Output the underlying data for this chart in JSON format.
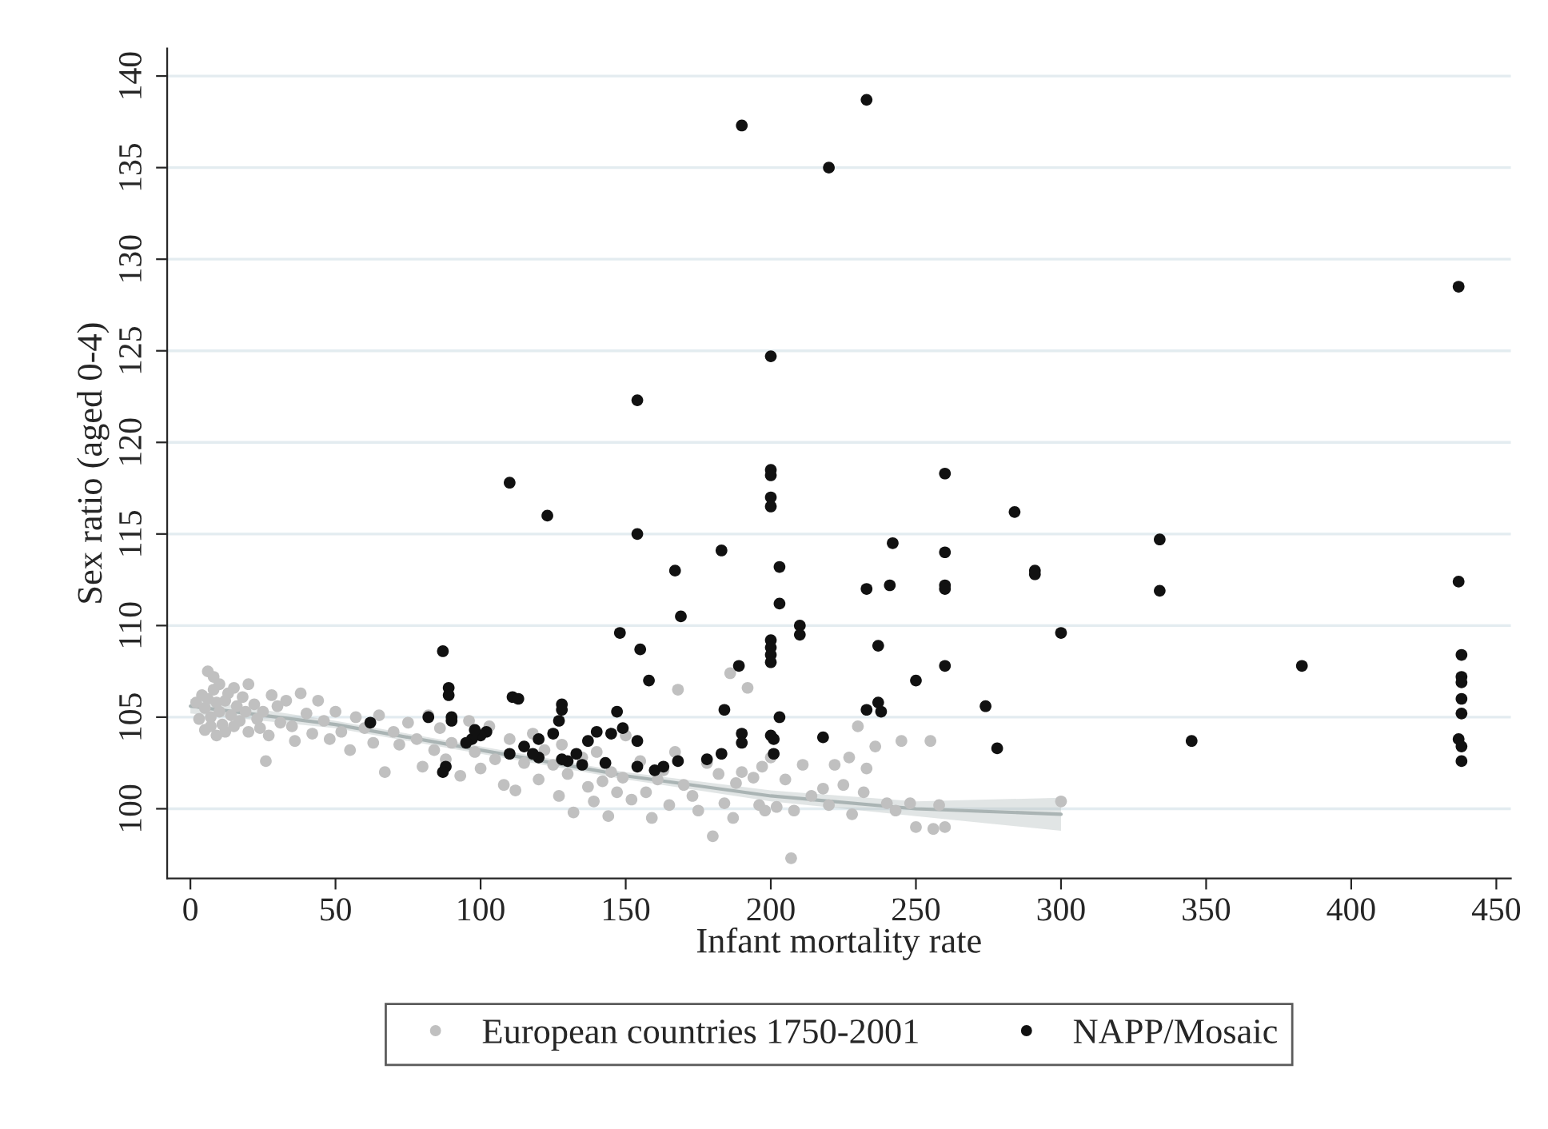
{
  "chart_data": {
    "type": "scatter",
    "xlabel": "Infant mortality rate",
    "ylabel": "Sex ratio (aged 0-4)",
    "xlim": [
      -8,
      455
    ],
    "ylim": [
      96.2,
      141.5
    ],
    "xticks": [
      0,
      50,
      100,
      150,
      200,
      250,
      300,
      350,
      400,
      450
    ],
    "yticks": [
      100,
      105,
      110,
      115,
      120,
      125,
      130,
      135,
      140
    ],
    "grid": "y",
    "legend": "bottom",
    "series": [
      {
        "name": "European countries 1750-2001",
        "marker": "circle",
        "color": "#c0c0c0",
        "x": [
          2,
          3,
          4,
          5,
          5,
          6,
          6,
          7,
          7,
          8,
          8,
          9,
          9,
          10,
          10,
          11,
          12,
          12,
          13,
          14,
          15,
          15,
          16,
          17,
          18,
          19,
          20,
          20,
          22,
          23,
          24,
          25,
          26,
          27,
          28,
          30,
          31,
          33,
          35,
          36,
          38,
          40,
          42,
          44,
          46,
          48,
          50,
          52,
          55,
          57,
          60,
          63,
          65,
          67,
          70,
          72,
          75,
          78,
          80,
          82,
          84,
          86,
          88,
          90,
          93,
          96,
          98,
          100,
          103,
          105,
          108,
          110,
          112,
          115,
          118,
          120,
          122,
          125,
          127,
          128,
          130,
          132,
          135,
          137,
          139,
          140,
          142,
          144,
          145,
          147,
          149,
          150,
          152,
          155,
          157,
          159,
          161,
          163,
          165,
          167,
          168,
          170,
          173,
          175,
          178,
          180,
          182,
          184,
          186,
          187,
          188,
          190,
          192,
          194,
          196,
          197,
          198,
          200,
          202,
          205,
          207,
          208,
          211,
          214,
          218,
          220,
          222,
          225,
          227,
          228,
          230,
          232,
          233,
          236,
          240,
          243,
          245,
          248,
          250,
          255,
          256,
          258,
          260,
          300
        ],
        "values": [
          105.8,
          104.9,
          106.2,
          105.5,
          104.3,
          107.5,
          106,
          105,
          104.5,
          107.2,
          106.5,
          105.8,
          104,
          106.8,
          105.3,
          104.6,
          105.9,
          104.2,
          106.3,
          105.1,
          104.5,
          106.6,
          105.6,
          104.8,
          106.1,
          105.3,
          104.2,
          106.8,
          105.7,
          104.9,
          104.4,
          105.3,
          102.6,
          104,
          106.2,
          105.6,
          104.7,
          105.9,
          104.5,
          103.7,
          106.3,
          105.2,
          104.1,
          105.9,
          104.8,
          103.8,
          105.3,
          104.2,
          103.2,
          105,
          104.4,
          103.6,
          105.1,
          102,
          104.2,
          103.5,
          104.7,
          103.8,
          102.3,
          105.1,
          103.2,
          104.4,
          102.7,
          103.6,
          101.8,
          104.8,
          103.1,
          102.2,
          104.5,
          102.7,
          101.3,
          103.8,
          101,
          102.5,
          104.1,
          101.6,
          103.2,
          102.4,
          100.7,
          103.5,
          101.9,
          99.8,
          102.8,
          101.2,
          100.4,
          103.1,
          101.5,
          99.6,
          102,
          100.9,
          101.7,
          104,
          100.5,
          102.6,
          100.9,
          99.5,
          101.6,
          102.1,
          100.2,
          103.1,
          106.5,
          101.3,
          100.7,
          99.9,
          102.5,
          98.5,
          101.9,
          100.3,
          107.4,
          99.5,
          101.4,
          102,
          106.6,
          101.7,
          100.2,
          102.3,
          99.9,
          102.8,
          100.1,
          101.6,
          97.3,
          99.9,
          102.4,
          100.7,
          101.1,
          100.2,
          102.4,
          101.3,
          102.8,
          99.7,
          104.5,
          100.9,
          102.2,
          103.4,
          100.3,
          99.9,
          103.7,
          100.3,
          99,
          103.7,
          98.9,
          100.2,
          99,
          100.4
        ]
      },
      {
        "name": "NAPP/Mosaic",
        "marker": "circle",
        "color": "#111111",
        "x": [
          190,
          233,
          220,
          200,
          154,
          110,
          123,
          154,
          200,
          200,
          200,
          200,
          260,
          284,
          334,
          334,
          260,
          260,
          260,
          242,
          241,
          233,
          291,
          291,
          167,
          183,
          203,
          203,
          210,
          210,
          169,
          148,
          200,
          200,
          200,
          200,
          189,
          155,
          87,
          237,
          260,
          300,
          383,
          437,
          437,
          438,
          438,
          438,
          438,
          438,
          437,
          438,
          438,
          345,
          274,
          278,
          250,
          237,
          238,
          233,
          184,
          203,
          200,
          201,
          201,
          190,
          190,
          183,
          218,
          158,
          147,
          154,
          154,
          160,
          168,
          178,
          140,
          137,
          133,
          128,
          128,
          127,
          125,
          120,
          120,
          118,
          111,
          113,
          110,
          102,
          100,
          97,
          95,
          98,
          89,
          89,
          90,
          90,
          82,
          88,
          87,
          62,
          145,
          149,
          143,
          130,
          135,
          163,
          128,
          115
        ],
        "values": [
          137.3,
          138.7,
          135,
          124.7,
          122.3,
          117.8,
          116,
          115,
          118.5,
          118.2,
          117,
          116.5,
          118.3,
          116.2,
          114.7,
          111.9,
          114,
          112.2,
          112,
          114.5,
          112.2,
          112,
          113,
          112.8,
          113,
          114.1,
          113.2,
          111.2,
          110,
          109.5,
          110.5,
          109.6,
          109.2,
          108.8,
          108.4,
          108,
          107.8,
          108.7,
          108.6,
          108.9,
          107.8,
          109.6,
          107.8,
          128.5,
          112.4,
          108.4,
          107.2,
          106.9,
          106,
          105.2,
          103.8,
          103.4,
          102.6,
          103.7,
          105.6,
          103.3,
          107,
          105.8,
          105.3,
          105.4,
          105.4,
          105,
          104,
          103.8,
          103,
          104.1,
          103.6,
          103,
          103.9,
          107,
          105.3,
          103.7,
          102.3,
          102.1,
          102.6,
          102.7,
          104.2,
          103.7,
          103,
          105.7,
          105.4,
          104.8,
          104.1,
          103.8,
          102.8,
          103,
          106.1,
          106,
          103,
          104.2,
          104,
          103.8,
          103.6,
          104.3,
          106.6,
          106.2,
          105,
          104.8,
          105,
          102.3,
          102,
          104.7,
          104.1,
          104.4,
          102.5,
          102.6,
          102.4,
          102.3,
          102.7,
          103.4
        ]
      },
      {
        "type": "line",
        "marker": "none",
        "color": "#aab4b4",
        "line_style": "solid",
        "x": [
          0,
          50,
          100,
          150,
          200,
          250,
          300
        ],
        "values": [
          105.6,
          104.6,
          103.2,
          101.8,
          100.7,
          100,
          99.7
        ],
        "lower": [
          105.2,
          104.4,
          103,
          101.6,
          100.4,
          99.6,
          98.8
        ],
        "upper": [
          106,
          104.8,
          103.4,
          102,
          101,
          100.4,
          100.6
        ]
      }
    ]
  }
}
